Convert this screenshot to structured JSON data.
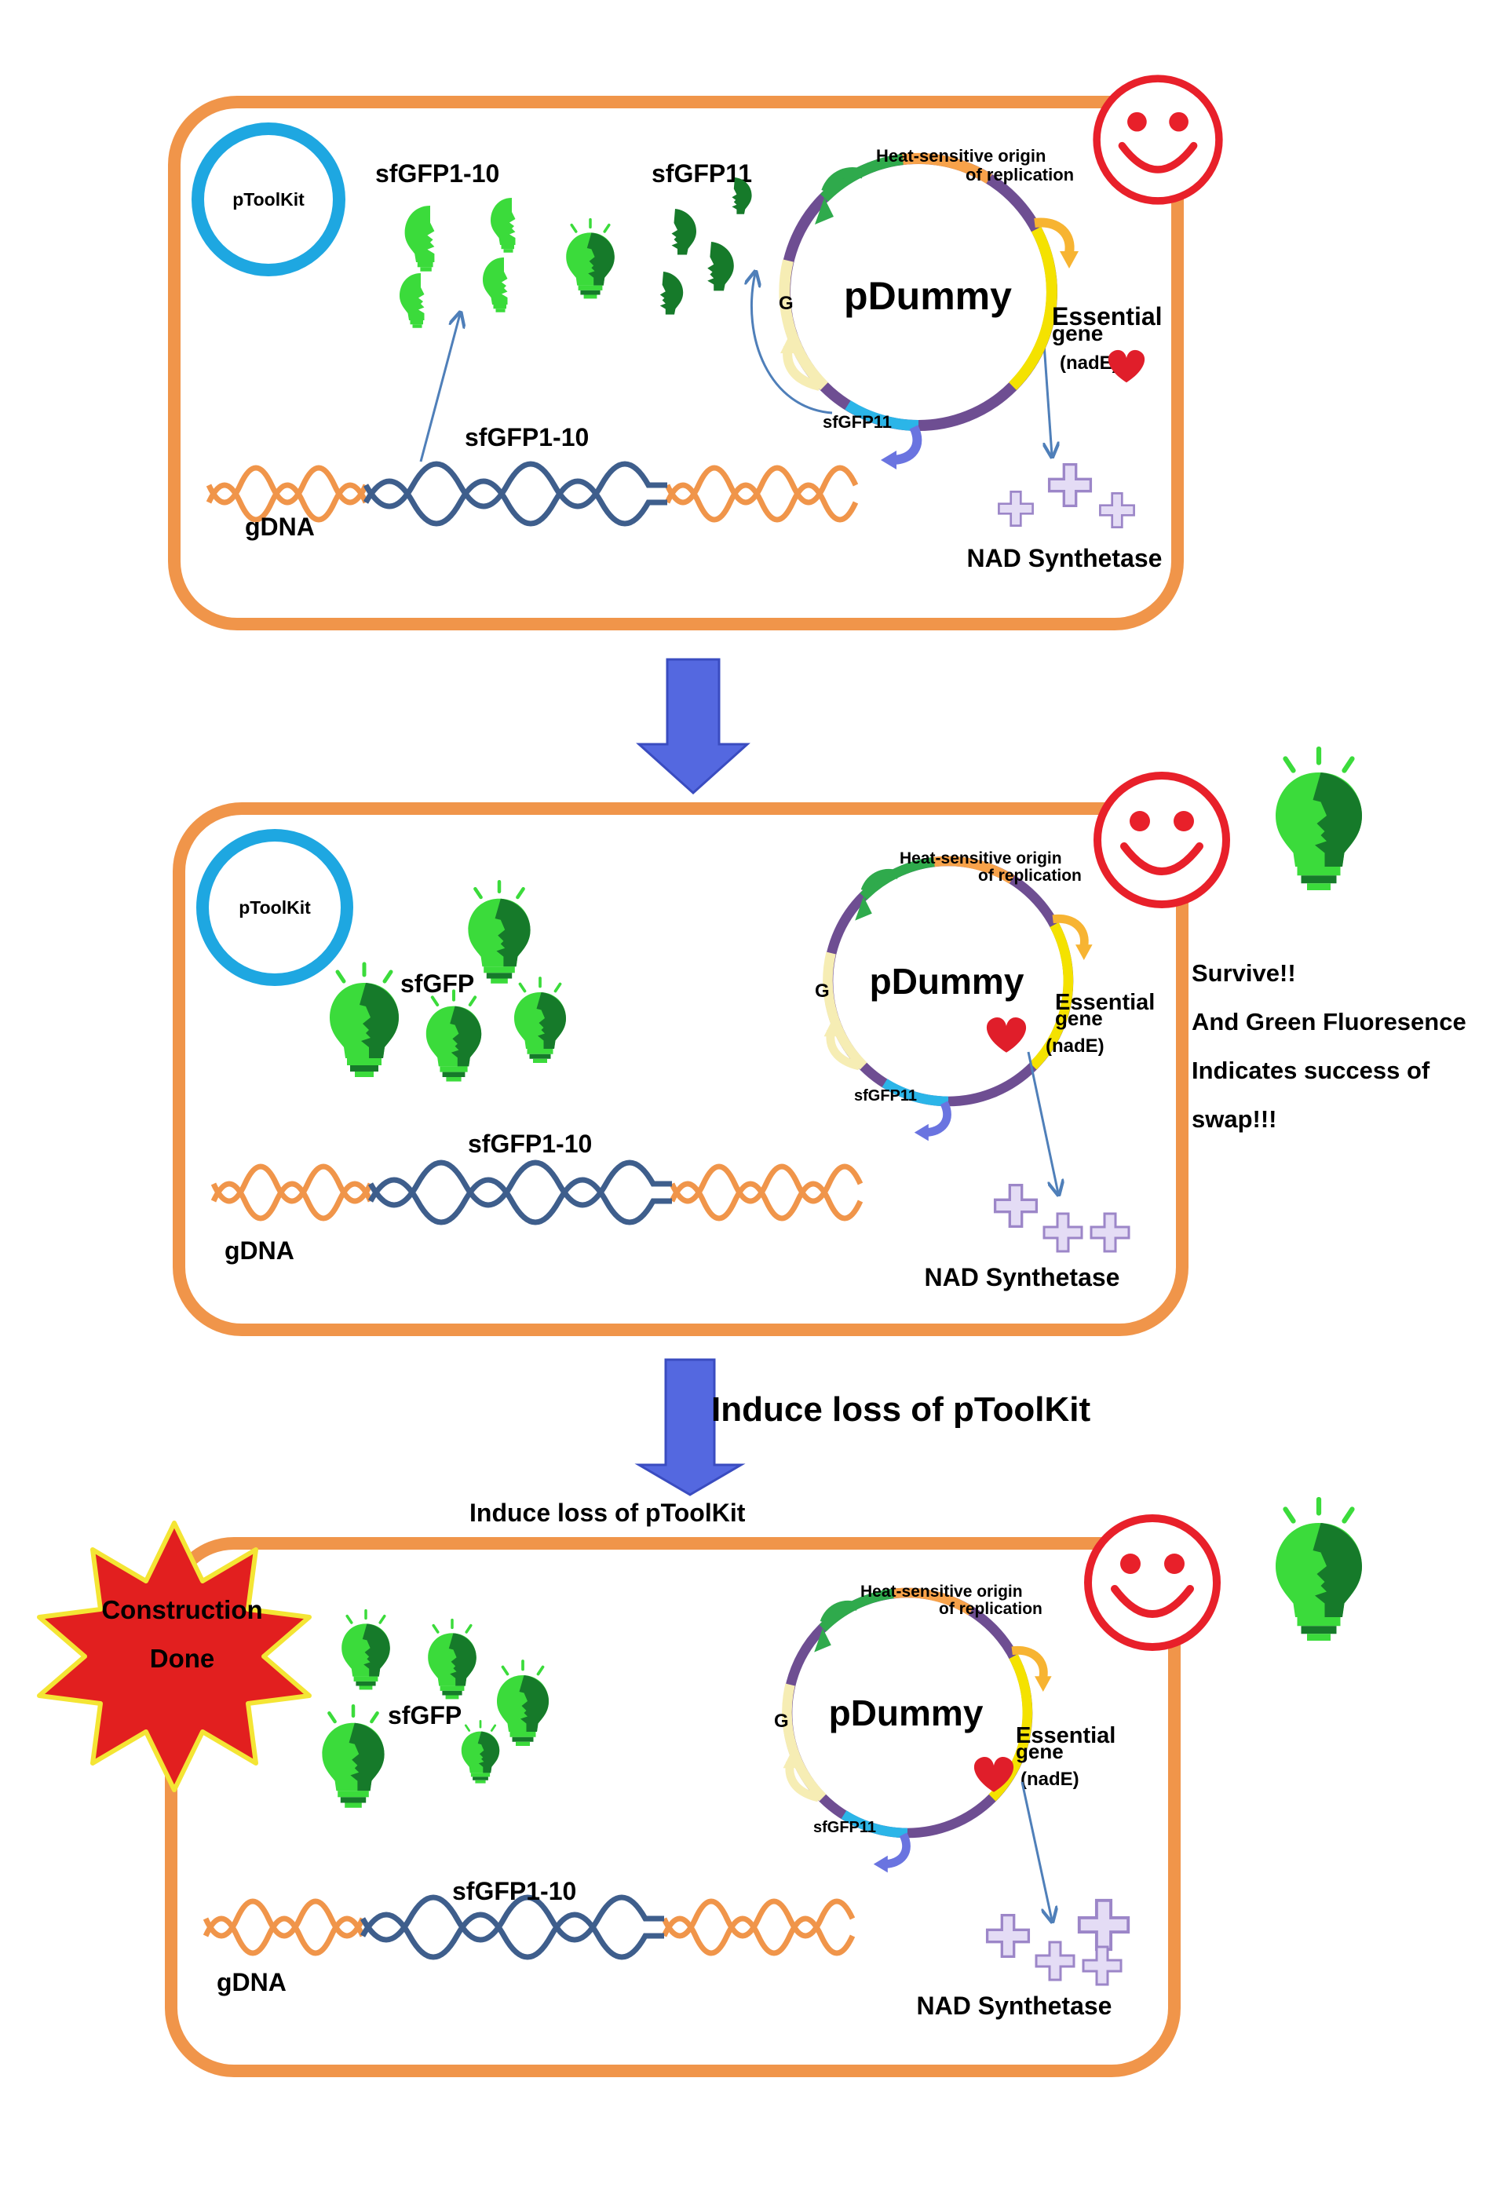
{
  "colors": {
    "cell_border": "#F0954A",
    "plasmid_ring": "#1EA7E1",
    "arrow_fill": "#5468E0",
    "smiley": "#E8202A",
    "bulb_light": "#3BDB3B",
    "bulb_dark": "#167A2A",
    "dna_gdna": "#F0954A",
    "dna_gene": "#3E5E8C",
    "nad_plus": "#C9B8E8",
    "heart": "#E01E2A",
    "star_fill": "#E21F1F",
    "star_border": "#F4E534"
  },
  "icons": {
    "smiley": "smiley-face-icon",
    "bulb": "lightbulb-icon",
    "heart": "heart-icon",
    "plus": "nad-plus-icon",
    "star": "starburst-icon"
  },
  "panel1": {
    "ptoolkit": "pToolKit",
    "sfgfp1_10_label": "sfGFP1-10",
    "sfgfp11_label": "sfGFP11",
    "gene_label": "sfGFP1-10",
    "gdna": "gDNA",
    "nad": "NAD Synthetase",
    "plasmid": {
      "name": "pDummy",
      "origin_line1": "Heat-sensitive origin",
      "origin_line2": "of replication",
      "essential": "Essential",
      "gene": "gene",
      "nade": "(nadE)",
      "g": "G",
      "sfgfp11": "sfGFP11"
    }
  },
  "panel2": {
    "ptoolkit": "pToolKit",
    "sfgfp_label": "sfGFP",
    "gene_label": "sfGFP1-10",
    "gdna": "gDNA",
    "nad": "NAD Synthetase",
    "plasmid": {
      "name": "pDummy",
      "origin_line1": "Heat-sensitive origin",
      "origin_line2": "of replication",
      "essential": "Essential",
      "gene": "gene",
      "nade": "(nadE)",
      "g": "G",
      "sfgfp11": "sfGFP11"
    }
  },
  "panel3": {
    "sfgfp_label": "sfGFP",
    "gene_label": "sfGFP1-10",
    "gdna": "gDNA",
    "nad": "NAD Synthetase",
    "plasmid": {
      "name": "pDummy",
      "origin_line1": "Heat-sensitive origin",
      "origin_line2": "of replication",
      "essential": "Essential",
      "gene": "gene",
      "nade": "(nadE)",
      "g": "G",
      "sfgfp11": "sfGFP11"
    }
  },
  "side_note": {
    "line1": "Survive!!",
    "line2": "And Green Fluoresence",
    "line3": "Indicates success of",
    "line4": "swap!!!"
  },
  "transition2": {
    "label_large": "Induce loss of pToolKit",
    "label_small": "Induce loss of pToolKit"
  },
  "badge": {
    "line1": "Construction",
    "line2": "Done"
  }
}
